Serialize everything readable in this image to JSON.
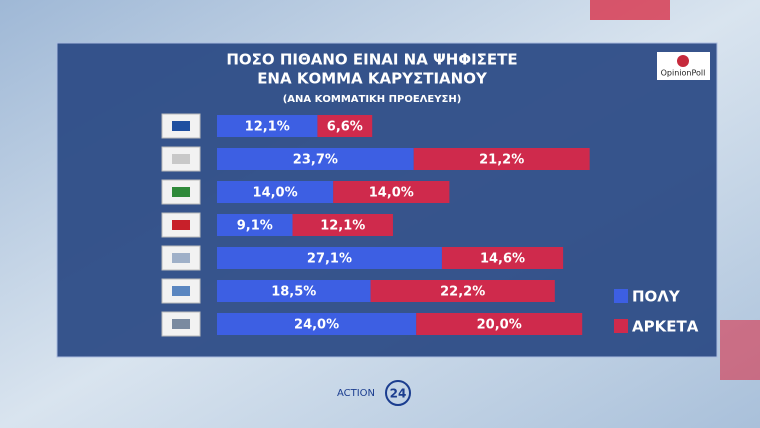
{
  "chart_data": {
    "type": "stacked-bar-horizontal",
    "title": [
      "ΠΟΣΟ ΠΙΘΑΝΟ ΕΙΝΑΙ ΝΑ ΨΗΦΙΣΕΤΕ",
      "ΕΝΑ ΚΟΜΜΑ ΚΑΡΥΣΤΙΑΝΟΥ"
    ],
    "subtitle": "(ΑΝΑ ΚΟΜΜΑΤΙΚΗ ΠΡΟΕΛΕΥΣΗ)",
    "categories": [
      null,
      null,
      null,
      null,
      null,
      null,
      null
    ],
    "series": [
      {
        "name": "ΠΟΛΥ",
        "color": "#3d5fe3",
        "values": [
          12.1,
          23.7,
          14.0,
          9.1,
          27.1,
          18.5,
          24.0
        ],
        "value_labels": [
          "12,1%",
          "23,7%",
          "14,0%",
          "9,1%",
          "27,1%",
          "18,5%",
          "24,0%"
        ]
      },
      {
        "name": "ΑΡΚΕΤΑ",
        "color": "#cf2a4c",
        "values": [
          6.6,
          21.2,
          14.0,
          12.1,
          14.6,
          22.2,
          20.0
        ],
        "value_labels": [
          "6,6%",
          "21,2%",
          "14,0%",
          "12,1%",
          "14,6%",
          "22,2%",
          "20,0%"
        ]
      }
    ],
    "legend": "right"
  },
  "logos": {
    "pollster": "OpinionPoll",
    "channel": "ACTION",
    "channel_number": "24"
  }
}
